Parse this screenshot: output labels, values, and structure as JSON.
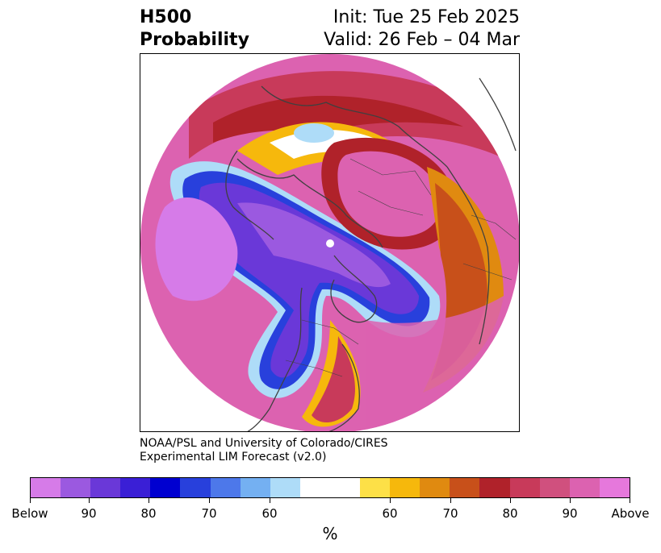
{
  "header": {
    "variable": "H500",
    "product": "Probability",
    "init": "Init: Tue 25 Feb 2025",
    "valid": "Valid: 26 Feb – 04 Mar"
  },
  "credit": {
    "line1": "NOAA/PSL and University of Colorado/CIRES",
    "line2": "Experimental LIM Forecast (v2.0)"
  },
  "colorbar": {
    "colors": [
      "#d67be8",
      "#9b59e0",
      "#6a38d8",
      "#3a1fd6",
      "#0000d0",
      "#2840dc",
      "#4d78ea",
      "#74b0f2",
      "#aedcf8",
      "#ffffff",
      "#ffffff",
      "#fde047",
      "#f6b80c",
      "#e08a10",
      "#c8501a",
      "#b0222a",
      "#c83a5a",
      "#d0507e",
      "#dc62b0",
      "#e678dc"
    ],
    "ticks": [
      "Below",
      "90",
      "80",
      "70",
      "60",
      "60",
      "70",
      "80",
      "90",
      "Above"
    ],
    "unit": "%"
  },
  "map": {
    "projection": "north-polar-stereographic",
    "features": [
      "coastlines",
      "country-borders",
      "state-borders"
    ]
  }
}
